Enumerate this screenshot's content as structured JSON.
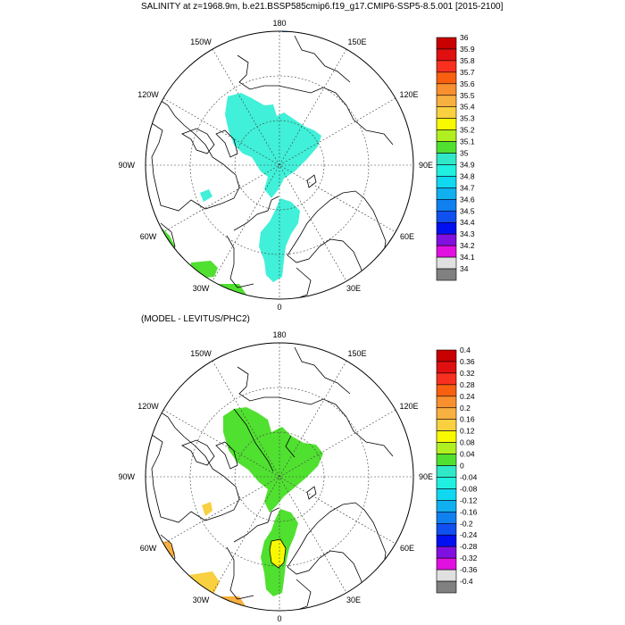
{
  "top_panel": {
    "title": "SALINITY at z=1968.9m, b.e21.BSSP585cmip6.f19_g17.CMIP6-SSP5-8.5.001 [2015-2100]",
    "lon_labels": [
      "180",
      "150E",
      "120E",
      "90E",
      "60E",
      "30E",
      "0",
      "30W",
      "60W",
      "90W",
      "120W",
      "150W"
    ],
    "colorbar": {
      "labels": [
        "36",
        "35.9",
        "35.8",
        "35.7",
        "35.6",
        "35.5",
        "35.4",
        "35.3",
        "35.2",
        "35.1",
        "35",
        "34.9",
        "34.8",
        "34.7",
        "34.6",
        "34.5",
        "34.4",
        "34.3",
        "34.2",
        "34.1",
        "34"
      ],
      "colors": [
        "#c80000",
        "#e01010",
        "#f83020",
        "#f86010",
        "#f89030",
        "#f8b040",
        "#f8d040",
        "#f8f800",
        "#b0f020",
        "#50e030",
        "#30e8c8",
        "#20f0e0",
        "#10d8f0",
        "#10b0f0",
        "#1080f0",
        "#1050f0",
        "#0010f0",
        "#8010e0",
        "#e010e0",
        "#e0e0e0",
        "#808080"
      ]
    }
  },
  "bottom_panel": {
    "title": "(MODEL - LEVITUS/PHC2)",
    "lon_labels": [
      "180",
      "150E",
      "120E",
      "90E",
      "60E",
      "30E",
      "0",
      "30W",
      "60W",
      "90W",
      "120W",
      "150W"
    ],
    "colorbar": {
      "labels": [
        "0.4",
        "0.36",
        "0.32",
        "0.28",
        "0.24",
        "0.2",
        "0.16",
        "0.12",
        "0.08",
        "0.04",
        "0",
        "-0.04",
        "-0.08",
        "-0.12",
        "-0.16",
        "-0.2",
        "-0.24",
        "-0.28",
        "-0.32",
        "-0.36",
        "-0.4"
      ],
      "colors": [
        "#c80000",
        "#e01010",
        "#f83020",
        "#f86010",
        "#f89030",
        "#f8b040",
        "#f8d040",
        "#f8f800",
        "#b0f020",
        "#50e030",
        "#30e8c8",
        "#20f0e0",
        "#10d8f0",
        "#10b0f0",
        "#1080f0",
        "#1050f0",
        "#0010f0",
        "#8010e0",
        "#e010e0",
        "#e0e0e0",
        "#808080"
      ]
    }
  },
  "fill_colors": {
    "salinity_main": "#40f0d8",
    "salinity_edge": "#50e030",
    "salinity_blue": "#1070f0",
    "diff_main": "#50e030",
    "diff_yellow": "#f8f800",
    "diff_gold": "#f8d040",
    "diff_orange": "#f8b040"
  }
}
